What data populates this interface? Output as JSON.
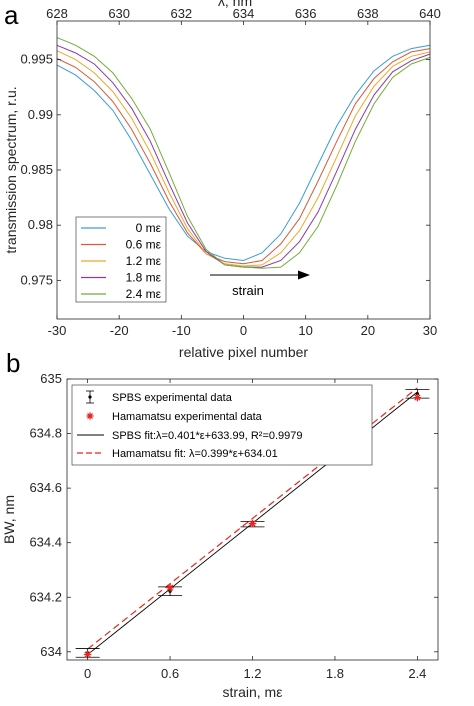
{
  "panels": [
    {
      "letter": "a"
    },
    {
      "letter": "b"
    }
  ],
  "chart_data": [
    {
      "type": "line",
      "panel": "a",
      "xlabel": "relative pixel number",
      "ylabel": "transmission spectrum, r.u.",
      "x2label": "λ, nm",
      "xlim": [
        -30,
        30
      ],
      "ylim": [
        0.9715,
        0.9985
      ],
      "x2lim": [
        628,
        640
      ],
      "xticks": [
        "-30",
        "-20",
        "-10",
        "0",
        "10",
        "20",
        "30"
      ],
      "yticks": [
        "0.975",
        "0.98",
        "0.985",
        "0.99",
        "0.995"
      ],
      "x2ticks": [
        "628",
        "630",
        "632",
        "634",
        "636",
        "638",
        "640"
      ],
      "grid": false,
      "legend_position": "bottom-left",
      "annotation": "strain",
      "x": [
        -30,
        -27,
        -24,
        -21,
        -18,
        -15,
        -12,
        -9,
        -6,
        -3,
        0,
        3,
        6,
        9,
        12,
        15,
        18,
        21,
        24,
        27,
        30
      ],
      "series": [
        {
          "name": "0 mε",
          "color": "#3a9dd6",
          "values": [
            0.9945,
            0.9936,
            0.9922,
            0.9904,
            0.9877,
            0.9846,
            0.9815,
            0.979,
            0.9776,
            0.977,
            0.9768,
            0.9775,
            0.9792,
            0.982,
            0.9855,
            0.989,
            0.9918,
            0.994,
            0.9953,
            0.996,
            0.9963
          ]
        },
        {
          "name": "0.6 mε",
          "color": "#d9593a",
          "values": [
            0.9951,
            0.9943,
            0.993,
            0.9912,
            0.9887,
            0.9856,
            0.9822,
            0.9793,
            0.9774,
            0.9767,
            0.9765,
            0.9768,
            0.9783,
            0.9806,
            0.984,
            0.9876,
            0.991,
            0.9933,
            0.9948,
            0.9957,
            0.996
          ]
        },
        {
          "name": "1.2 mε",
          "color": "#eda829",
          "values": [
            0.9958,
            0.995,
            0.9938,
            0.9921,
            0.9897,
            0.9866,
            0.983,
            0.9797,
            0.9774,
            0.9765,
            0.9763,
            0.9764,
            0.9775,
            0.9795,
            0.9825,
            0.9862,
            0.9899,
            0.9926,
            0.9944,
            0.9953,
            0.9957
          ]
        },
        {
          "name": "1.8 mε",
          "color": "#8a3aa8",
          "values": [
            0.9963,
            0.9956,
            0.9946,
            0.9929,
            0.9906,
            0.9876,
            0.9838,
            0.9802,
            0.9776,
            0.9764,
            0.9762,
            0.9762,
            0.9768,
            0.9785,
            0.9812,
            0.9849,
            0.9887,
            0.9918,
            0.9939,
            0.9949,
            0.9955
          ]
        },
        {
          "name": "2.4 mε",
          "color": "#72ad3a",
          "values": [
            0.997,
            0.9963,
            0.9953,
            0.9938,
            0.9915,
            0.9887,
            0.9848,
            0.9808,
            0.9778,
            0.9764,
            0.9762,
            0.9761,
            0.9762,
            0.9775,
            0.9799,
            0.9836,
            0.9876,
            0.991,
            0.9934,
            0.9946,
            0.9952
          ]
        }
      ]
    },
    {
      "type": "scatter",
      "panel": "b",
      "xlabel": "strain, mε",
      "ylabel": "BW, nm",
      "xlim": [
        -0.15,
        2.55
      ],
      "ylim": [
        633.97,
        635.0
      ],
      "xticks": [
        "0",
        "0.6",
        "1.2",
        "1.8",
        "2.4"
      ],
      "yticks": [
        "634",
        "634.2",
        "634.4",
        "634.6",
        "634.8",
        "635"
      ],
      "grid": false,
      "legend_position": "top-left",
      "x": [
        0,
        0.6,
        1.2,
        1.8,
        2.4
      ],
      "series": [
        {
          "name": "SPBS experimental data",
          "color": "#000000",
          "values": [
            633.996,
            634.222,
            634.468,
            634.708,
            634.946
          ],
          "errors": [
            0.016,
            0.016,
            0.01,
            0.01,
            0.016
          ]
        },
        {
          "name": "Hamamatsu experimental data",
          "color": "#e8251f",
          "values": [
            633.99,
            634.235,
            634.47,
            634.71,
            634.932
          ]
        },
        {
          "name": "SPBS fit:λ=0.401*ε+633.99, R²=0.9979",
          "color": "#000000",
          "slope": 0.401,
          "intercept": 633.99
        },
        {
          "name": "Hamamatsu fit: λ=0.399*ε+634.01",
          "color": "#e8251f",
          "slope": 0.399,
          "intercept": 634.01
        }
      ]
    }
  ]
}
